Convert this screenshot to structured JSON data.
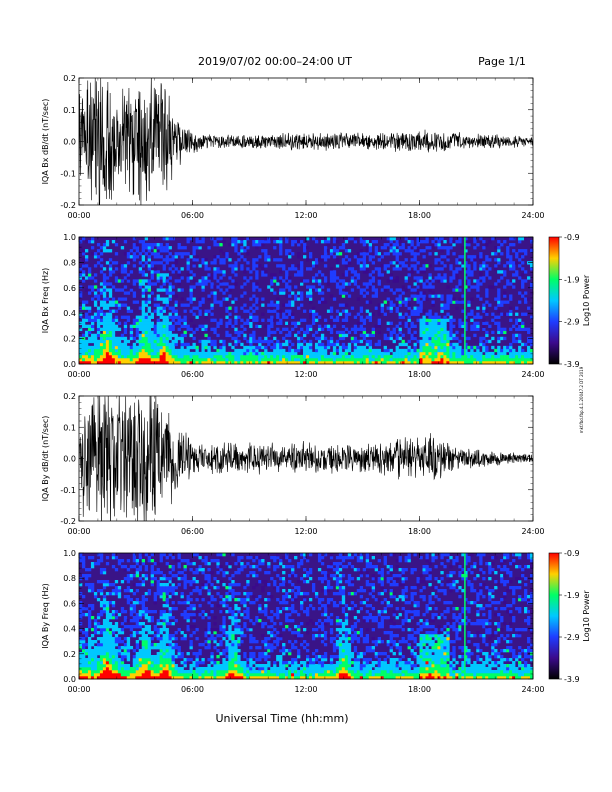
{
  "header": {
    "date_title": "2019/07/02  00:00–24:00 UT",
    "page_label": "Page 1/1"
  },
  "footer": {
    "xlabel": "Universal Time (hh:mm)"
  },
  "side_note": "mkf.fbd.fbp.4.1.20047.2 DT 2019",
  "colors": {
    "trace": "#000000",
    "spectrogram_background": "#3a1487",
    "colormap": [
      "#000000",
      "#3b0a8c",
      "#1f3cff",
      "#00c8ff",
      "#00ff66",
      "#ffd000",
      "#ff0000"
    ]
  },
  "chart_data": [
    {
      "type": "line",
      "name": "bx_waveform",
      "title": "",
      "ylabel": "IQA Bx dB/dt (nT/sec)",
      "xlabel": "",
      "xlim": [
        0,
        24
      ],
      "ylim": [
        -0.2,
        0.2
      ],
      "x_ticks": [
        "00:00",
        "06:00",
        "12:00",
        "18:00",
        "24:00"
      ],
      "y_ticks": [
        "-0.2",
        "-0.1",
        "0.0",
        "0.1",
        "0.2"
      ],
      "amplitude_envelope": {
        "hours": [
          0.0,
          1.0,
          1.5,
          2.0,
          3.0,
          3.5,
          4.0,
          4.5,
          5.0,
          6.0,
          7.0,
          9.0,
          12.0,
          15.0,
          18.0,
          20.0,
          22.0,
          24.0
        ],
        "amplitude": [
          0.12,
          0.2,
          0.22,
          0.16,
          0.16,
          0.2,
          0.15,
          0.2,
          0.08,
          0.03,
          0.02,
          0.02,
          0.025,
          0.025,
          0.03,
          0.025,
          0.02,
          0.012
        ]
      }
    },
    {
      "type": "heatmap",
      "name": "bx_spectrogram",
      "title": "",
      "ylabel": "IQA Bx Freq (Hz)",
      "xlabel": "",
      "xlim": [
        0,
        24
      ],
      "ylim": [
        0.0,
        1.0
      ],
      "x_ticks": [
        "00:00",
        "06:00",
        "12:00",
        "18:00",
        "24:00"
      ],
      "y_ticks": [
        "0.0",
        "0.2",
        "0.4",
        "0.6",
        "0.8",
        "1.0"
      ],
      "colorbar": {
        "label": "Log10 Power",
        "ticks": [
          "-0.9",
          "-1.9",
          "-2.9",
          "-3.9"
        ],
        "range": [
          -3.9,
          -0.9
        ]
      },
      "features": {
        "bright_hours": [
          1.5,
          3.5,
          4.5
        ],
        "narrowband_line_hour": 20.4,
        "band_hump": {
          "hours": [
            18.0,
            19.5
          ],
          "freq_max": 0.35
        }
      }
    },
    {
      "type": "line",
      "name": "by_waveform",
      "title": "",
      "ylabel": "IQA By dB/dt (nT/sec)",
      "xlabel": "",
      "xlim": [
        0,
        24
      ],
      "ylim": [
        -0.2,
        0.2
      ],
      "x_ticks": [
        "00:00",
        "06:00",
        "12:00",
        "18:00",
        "24:00"
      ],
      "y_ticks": [
        "-0.2",
        "-0.1",
        "0.0",
        "0.1",
        "0.2"
      ],
      "amplitude_envelope": {
        "hours": [
          0.0,
          1.0,
          1.5,
          2.0,
          3.0,
          3.5,
          4.0,
          5.0,
          6.0,
          8.0,
          12.0,
          15.0,
          17.5,
          18.5,
          20.0,
          22.0,
          24.0
        ],
        "amplitude": [
          0.14,
          0.22,
          0.22,
          0.18,
          0.2,
          0.22,
          0.2,
          0.12,
          0.05,
          0.045,
          0.045,
          0.04,
          0.06,
          0.07,
          0.03,
          0.02,
          0.012
        ]
      }
    },
    {
      "type": "heatmap",
      "name": "by_spectrogram",
      "title": "",
      "ylabel": "IQA By Freq (Hz)",
      "xlabel": "",
      "xlim": [
        0,
        24
      ],
      "ylim": [
        0.0,
        1.0
      ],
      "x_ticks": [
        "00:00",
        "06:00",
        "12:00",
        "18:00",
        "24:00"
      ],
      "y_ticks": [
        "0.0",
        "0.2",
        "0.4",
        "0.6",
        "0.8",
        "1.0"
      ],
      "colorbar": {
        "label": "Log10 Power",
        "ticks": [
          "-0.9",
          "-1.9",
          "-2.9",
          "-3.9"
        ],
        "range": [
          -3.9,
          -0.9
        ]
      },
      "features": {
        "bright_hours": [
          1.5,
          3.5,
          4.5,
          8.2,
          14.0
        ],
        "narrowband_line_hour": 20.4,
        "band_hump": {
          "hours": [
            18.0,
            19.5
          ],
          "freq_max": 0.35
        }
      }
    }
  ]
}
